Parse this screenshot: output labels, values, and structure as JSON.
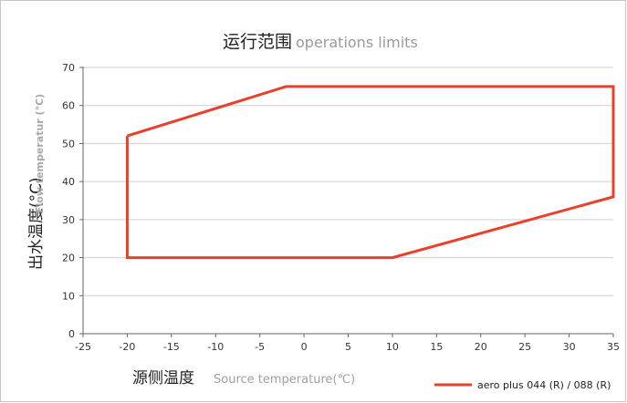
{
  "chart_data": {
    "type": "line",
    "title": "运行范围",
    "subtitle": "operations  limits",
    "xlabel": "源侧温度",
    "xlabel_sub": "Source temperature(℃)",
    "ylabel": "出水温度(°C)",
    "ylabel_sub": "Flow temperatur (°C)",
    "xlim": [
      -25,
      35
    ],
    "ylim": [
      0,
      70
    ],
    "xticks": [
      -25,
      -20,
      -15,
      -10,
      -5,
      0,
      5,
      10,
      15,
      20,
      25,
      30,
      35
    ],
    "yticks": [
      0,
      10,
      20,
      30,
      40,
      50,
      60,
      70
    ],
    "grid": "horizontal",
    "legend_position": "bottom-right",
    "series": [
      {
        "name": "aero plus 044 (R) / 088 (R)",
        "color": "#e8402a",
        "closed": true,
        "x": [
          -20,
          -2,
          35,
          35,
          10,
          -20,
          -20
        ],
        "y": [
          52,
          65,
          65,
          36,
          20,
          20,
          52
        ]
      }
    ]
  }
}
